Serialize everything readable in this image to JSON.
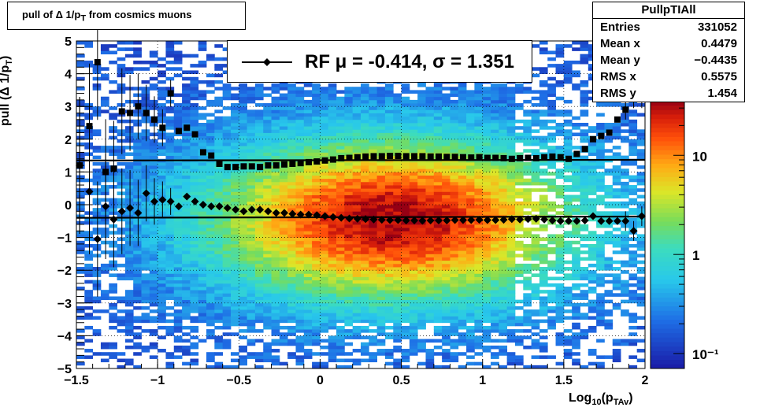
{
  "title": {
    "prefix": "pull of Δ 1/p",
    "sub": "T",
    "suffix": " from cosmics muons"
  },
  "stats": {
    "name": "PullpTIAll",
    "rows": [
      {
        "label": "Entries",
        "value": "331052"
      },
      {
        "label": "Mean x",
        "value": "0.4479"
      },
      {
        "label": "Mean y",
        "value": "−0.4435"
      },
      {
        "label": "RMS x",
        "value": "0.5575"
      },
      {
        "label": "RMS y",
        "value": "1.454"
      }
    ]
  },
  "legend": {
    "text": "RF μ = -0.414, σ =   1.351"
  },
  "ylabel": {
    "prefix": "pull (Δ 1/p",
    "sub": "T",
    "suffix": ")"
  },
  "xlabel": {
    "prefix": "Log",
    "sub1": "10",
    "mid": "(p",
    "sub2": "TAv",
    "suffix": ")"
  },
  "chart_data": {
    "type": "heatmap",
    "xlim": [
      -1.5,
      2
    ],
    "ylim": [
      -5,
      5
    ],
    "x_ticks": [
      "−1.5",
      "−1",
      "−0.5",
      "0",
      "0.5",
      "1",
      "1.5",
      "2"
    ],
    "y_ticks": [
      "−5",
      "−4",
      "−3",
      "−2",
      "−1",
      "0",
      "1",
      "2",
      "3",
      "4",
      "5"
    ],
    "grid": true,
    "z_scale": "log",
    "z_ticks": [
      "10",
      "1",
      "10⁻¹"
    ],
    "colors": {
      "low": "#1a1aa6",
      "mid": "#2bd9c8",
      "high": "#ff2a00",
      "max": "#9e0010"
    },
    "series": [
      {
        "marker": "square",
        "x": [
          -1.48,
          -1.42,
          -1.37,
          -1.32,
          -1.27,
          -1.22,
          -1.17,
          -1.12,
          -1.07,
          -1.02,
          -0.97,
          -0.92,
          -0.87,
          -0.82,
          -0.77,
          -0.72,
          -0.67,
          -0.62,
          -0.57,
          -0.52,
          -0.47,
          -0.42,
          -0.37,
          -0.32,
          -0.27,
          -0.22,
          -0.17,
          -0.12,
          -0.07,
          -0.02,
          0.03,
          0.08,
          0.13,
          0.18,
          0.23,
          0.28,
          0.33,
          0.38,
          0.43,
          0.48,
          0.53,
          0.58,
          0.63,
          0.68,
          0.73,
          0.78,
          0.83,
          0.88,
          0.93,
          0.98,
          1.03,
          1.08,
          1.13,
          1.18,
          1.23,
          1.28,
          1.33,
          1.38,
          1.43,
          1.48,
          1.53,
          1.58,
          1.63,
          1.68,
          1.73,
          1.78,
          1.83,
          1.88,
          1.93,
          1.98
        ],
        "y": [
          1.2,
          2.4,
          4.35,
          1.0,
          1.1,
          2.85,
          2.8,
          3.0,
          2.8,
          2.6,
          2.35,
          3.4,
          2.25,
          2.35,
          2.15,
          1.6,
          1.5,
          1.25,
          1.15,
          1.15,
          1.17,
          1.17,
          1.15,
          1.2,
          1.2,
          1.23,
          1.25,
          1.27,
          1.3,
          1.32,
          1.35,
          1.38,
          1.42,
          1.43,
          1.45,
          1.47,
          1.48,
          1.48,
          1.49,
          1.49,
          1.48,
          1.48,
          1.48,
          1.47,
          1.47,
          1.46,
          1.46,
          1.45,
          1.44,
          1.45,
          1.43,
          1.43,
          1.42,
          1.4,
          1.42,
          1.43,
          1.42,
          1.45,
          1.47,
          1.45,
          1.4,
          1.55,
          1.7,
          2.0,
          2.1,
          2.2,
          2.6,
          2.9,
          3.25,
          3.25
        ]
      },
      {
        "marker": "diamond",
        "x": [
          -1.48,
          -1.42,
          -1.37,
          -1.32,
          -1.27,
          -1.22,
          -1.17,
          -1.12,
          -1.07,
          -1.02,
          -0.97,
          -0.92,
          -0.87,
          -0.82,
          -0.77,
          -0.72,
          -0.67,
          -0.62,
          -0.57,
          -0.52,
          -0.47,
          -0.42,
          -0.37,
          -0.32,
          -0.27,
          -0.22,
          -0.17,
          -0.12,
          -0.07,
          -0.02,
          0.03,
          0.08,
          0.13,
          0.18,
          0.23,
          0.28,
          0.33,
          0.38,
          0.43,
          0.48,
          0.53,
          0.58,
          0.63,
          0.68,
          0.73,
          0.78,
          0.83,
          0.88,
          0.93,
          0.98,
          1.03,
          1.08,
          1.13,
          1.18,
          1.23,
          1.28,
          1.33,
          1.38,
          1.43,
          1.48,
          1.53,
          1.58,
          1.63,
          1.68,
          1.73,
          1.78,
          1.83,
          1.88,
          1.93,
          1.98
        ],
        "y": [
          1.2,
          0.4,
          -1.05,
          -0.05,
          -0.45,
          -0.2,
          -0.1,
          -0.25,
          0.35,
          0.1,
          0.15,
          0.1,
          -0.05,
          0.25,
          0.1,
          0.0,
          -0.05,
          -0.05,
          -0.1,
          -0.15,
          -0.2,
          -0.15,
          -0.15,
          -0.2,
          -0.25,
          -0.25,
          -0.28,
          -0.3,
          -0.3,
          -0.32,
          -0.35,
          -0.38,
          -0.4,
          -0.42,
          -0.43,
          -0.44,
          -0.45,
          -0.46,
          -0.47,
          -0.47,
          -0.48,
          -0.48,
          -0.49,
          -0.48,
          -0.48,
          -0.48,
          -0.47,
          -0.47,
          -0.47,
          -0.46,
          -0.47,
          -0.47,
          -0.46,
          -0.44,
          -0.45,
          -0.44,
          -0.43,
          -0.45,
          -0.48,
          -0.5,
          -0.5,
          -0.5,
          -0.48,
          -0.35,
          -0.5,
          -0.5,
          -0.5,
          -0.5,
          -0.8,
          -0.35
        ]
      }
    ],
    "fit_lines": [
      {
        "y0": 1.35,
        "y1": 1.37
      },
      {
        "y0": -0.4,
        "y1": -0.36
      }
    ]
  }
}
